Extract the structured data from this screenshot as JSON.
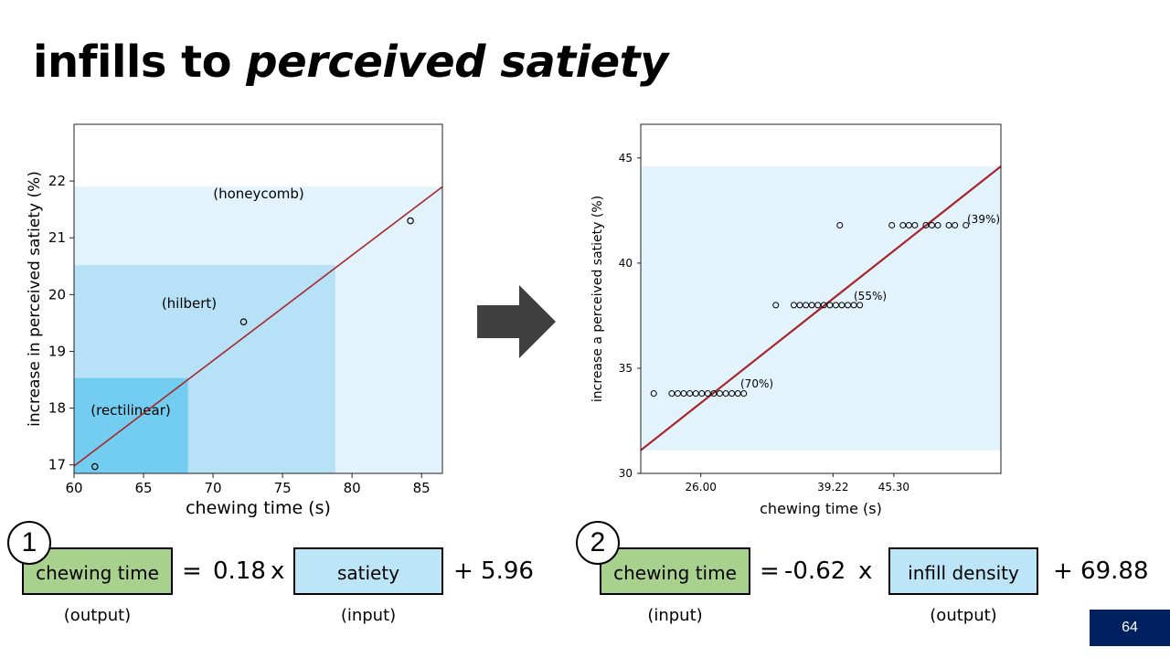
{
  "title": {
    "plain": "infills to ",
    "italic": "perceived satiety"
  },
  "chart_data": [
    {
      "type": "scatter",
      "xlabel": "chewing time (s)",
      "ylabel": "increase in perceived satiety (%)",
      "xlim": [
        60,
        86.5
      ],
      "ylim": [
        16.85,
        23
      ],
      "xticks": [
        60,
        65,
        70,
        75,
        80,
        85
      ],
      "yticks": [
        17,
        18,
        19,
        20,
        21,
        22
      ],
      "regions": [
        {
          "label": "(honeycomb)",
          "x": [
            60,
            86.5
          ],
          "y": [
            16.85,
            21.9
          ],
          "color": "#e3f3fc"
        },
        {
          "label": "(hilbert)",
          "x": [
            60,
            78.8
          ],
          "y": [
            16.85,
            20.52
          ],
          "color": "#b6e1f7"
        },
        {
          "label": "(rectilinear)",
          "x": [
            60,
            68.2
          ],
          "y": [
            16.85,
            18.53
          ],
          "color": "#72cdf0"
        }
      ],
      "points": [
        {
          "x": 61.5,
          "y": 16.97
        },
        {
          "x": 72.2,
          "y": 19.52
        },
        {
          "x": 84.2,
          "y": 21.3
        }
      ],
      "fit_line": {
        "x": [
          60,
          86.5
        ],
        "y": [
          16.98,
          21.9
        ],
        "color": "#a8262b"
      }
    },
    {
      "type": "scatter",
      "xlabel": "chewing time (s)",
      "ylabel": "increase a perceived satiety (%)",
      "xlim": [
        20,
        56
      ],
      "ylim": [
        30,
        46.6
      ],
      "xticks": [
        26.0,
        39.22,
        45.3
      ],
      "xtick_labels": [
        "26.00",
        "39.22",
        "45.30"
      ],
      "yticks": [
        30,
        35,
        40,
        45
      ],
      "band": {
        "y": [
          31.1,
          44.6
        ],
        "color": "#e3f3fc"
      },
      "series": [
        {
          "annotation": "(70%)",
          "y": 33.8,
          "x": [
            21.3,
            23.1,
            23.7,
            24.3,
            24.9,
            25.5,
            26.1,
            26.7,
            27.3,
            27.9,
            28.5,
            29.1,
            29.7,
            30.3
          ]
        },
        {
          "annotation": "(55%)",
          "y": 38.0,
          "x": [
            33.5,
            35.3,
            35.9,
            36.5,
            37.1,
            37.7,
            38.3,
            38.9,
            39.5,
            40.1,
            40.7,
            41.3,
            41.9
          ]
        },
        {
          "annotation": "(39%)",
          "y": 41.8,
          "x": [
            39.9,
            45.1,
            46.2,
            46.8,
            47.4,
            48.5,
            49.1,
            49.7,
            50.8,
            51.4,
            52.5
          ]
        }
      ],
      "fit_line": {
        "x": [
          20,
          56
        ],
        "y": [
          31.1,
          44.6
        ],
        "color": "#a8262b"
      }
    }
  ],
  "arrow_color": "#404040",
  "equations": [
    {
      "number": "1",
      "box1": {
        "text": "chewing time",
        "sub": "(output)"
      },
      "equals": "=",
      "coef": "0.18",
      "times": "x",
      "box2": {
        "text": "satiety",
        "sub": "(input)"
      },
      "intercept": "+ 5.96"
    },
    {
      "number": "2",
      "box1": {
        "text": "chewing time",
        "sub": "(input)"
      },
      "equals": "=",
      "coef": "-0.62",
      "times": "x",
      "box2": {
        "text": "infill density",
        "sub": "(output)"
      },
      "intercept": "+ 69.88"
    }
  ],
  "page_number": "64"
}
